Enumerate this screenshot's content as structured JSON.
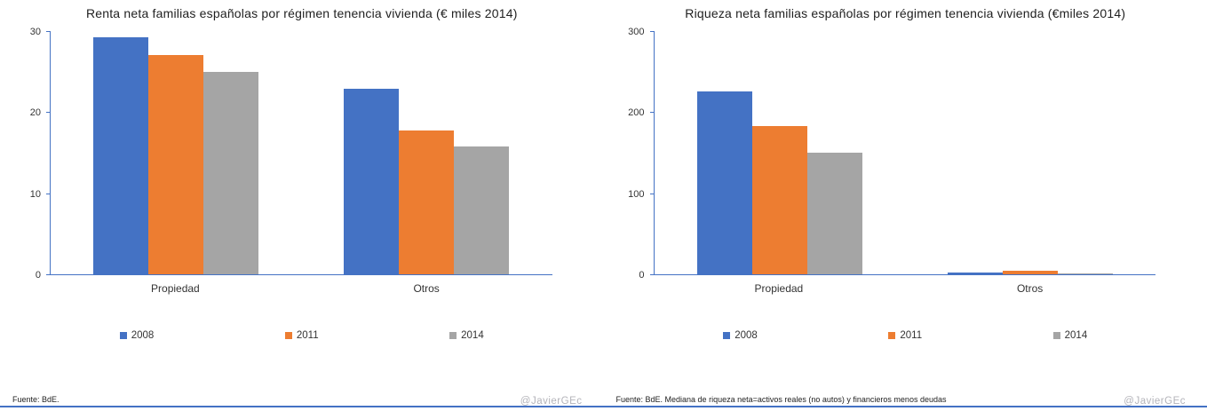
{
  "colors": {
    "axis": "#4472C4",
    "bottom_rule": "#4472C4",
    "series_2008": "#4472C4",
    "series_2011": "#ED7D31",
    "series_2014": "#A5A5A5",
    "watermark_text": "#B4B4BA"
  },
  "chart_data": [
    {
      "type": "bar",
      "title": "Renta neta familias españolas por régimen tenencia vivienda (€ miles  2014)",
      "categories": [
        "Propiedad",
        "Otros"
      ],
      "series": [
        {
          "name": "2008",
          "color": "#4472C4",
          "values": [
            29.2,
            22.9
          ]
        },
        {
          "name": "2011",
          "color": "#ED7D31",
          "values": [
            27.0,
            17.7
          ]
        },
        {
          "name": "2014",
          "color": "#A5A5A5",
          "values": [
            25.0,
            15.8
          ]
        }
      ],
      "ylim": [
        0,
        30
      ],
      "yticks": [
        0,
        10,
        20,
        30
      ],
      "grid": false,
      "legend_position": "bottom",
      "source": "Fuente: BdE.",
      "watermark": "@JavierGEc"
    },
    {
      "type": "bar",
      "title": "Riqueza neta familias españolas por régimen tenencia vivienda (€miles  2014)",
      "categories": [
        "Propiedad",
        "Otros"
      ],
      "series": [
        {
          "name": "2008",
          "color": "#4472C4",
          "values": [
            226,
            2
          ]
        },
        {
          "name": "2011",
          "color": "#ED7D31",
          "values": [
            183,
            4
          ]
        },
        {
          "name": "2014",
          "color": "#A5A5A5",
          "values": [
            150,
            1
          ]
        }
      ],
      "ylim": [
        0,
        300
      ],
      "yticks": [
        0,
        100,
        200,
        300
      ],
      "grid": false,
      "legend_position": "bottom",
      "source": "Fuente: BdE. Mediana de riqueza neta=activos reales (no autos) y financieros menos deudas",
      "watermark": "@JavierGEc"
    }
  ]
}
